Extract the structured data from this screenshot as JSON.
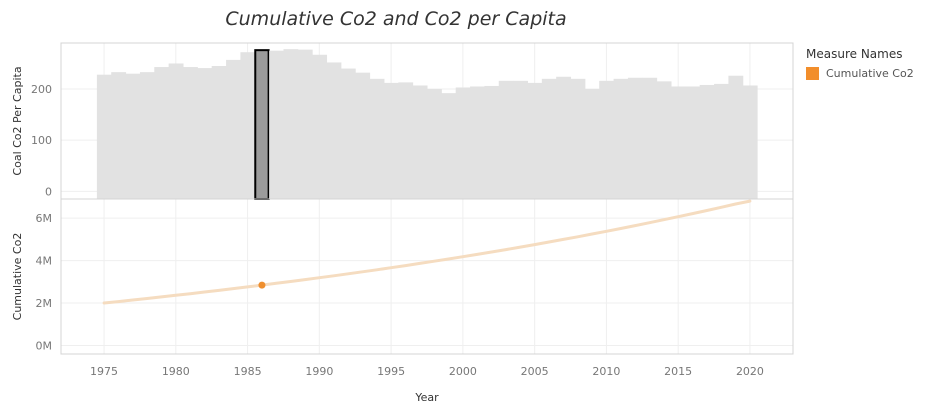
{
  "chart_data": {
    "type": "bar+line",
    "title": "Cumulative Co2 and Co2 per Capita",
    "xlabel": "Year",
    "x": [
      1975,
      1976,
      1977,
      1978,
      1979,
      1980,
      1981,
      1982,
      1983,
      1984,
      1985,
      1986,
      1987,
      1988,
      1989,
      1990,
      1991,
      1992,
      1993,
      1994,
      1995,
      1996,
      1997,
      1998,
      1999,
      2000,
      2001,
      2002,
      2003,
      2004,
      2005,
      2006,
      2007,
      2008,
      2009,
      2010,
      2011,
      2012,
      2013,
      2014,
      2015,
      2016,
      2017,
      2018,
      2019,
      2020
    ],
    "xticks": [
      "1975",
      "1980",
      "1985",
      "1990",
      "1995",
      "2000",
      "2005",
      "2010",
      "2015",
      "2020"
    ],
    "xlim": [
      1972,
      2023
    ],
    "highlight_year": 1986,
    "panels": [
      {
        "type": "bar",
        "ylabel": "Coal Co2 Per Capita",
        "ylim": [
          -15,
          290
        ],
        "yticks": [
          "0",
          "100",
          "200"
        ],
        "bar_color": "#e2e2e2",
        "highlight_color": "#9b9b9b",
        "values": [
          228,
          233,
          230,
          233,
          243,
          250,
          243,
          241,
          245,
          257,
          272,
          276,
          275,
          278,
          277,
          267,
          252,
          240,
          232,
          220,
          212,
          213,
          207,
          200,
          192,
          203,
          205,
          206,
          216,
          216,
          212,
          220,
          224,
          220,
          200,
          216,
          220,
          222,
          222,
          215,
          205,
          205,
          208,
          210,
          226,
          207
        ]
      },
      {
        "type": "line",
        "ylabel": "Cumulative Co2",
        "ylim": [
          -400000,
          6900000
        ],
        "yticks": [
          "0M",
          "2M",
          "4M",
          "6M"
        ],
        "line_color": "#f5dcc0",
        "marker_color": "#ef8f2f",
        "values": [
          2000000,
          2070000,
          2141000,
          2214000,
          2288000,
          2363000,
          2440000,
          2518000,
          2597000,
          2678000,
          2760000,
          2843000,
          2928000,
          3014000,
          3102000,
          3192000,
          3283000,
          3376000,
          3471000,
          3567000,
          3665000,
          3765000,
          3867000,
          3970000,
          4076000,
          4183000,
          4293000,
          4405000,
          4518000,
          4635000,
          4753000,
          4874000,
          4997000,
          5122000,
          5250000,
          5380000,
          5512000,
          5647000,
          5785000,
          5925000,
          6067000,
          6213000,
          6360000,
          6510000,
          6663000,
          6800000
        ]
      }
    ],
    "legend": {
      "title": "Measure Names",
      "position": "right",
      "items": [
        {
          "label": "Cumulative Co2",
          "color": "#f28e2b"
        }
      ]
    }
  }
}
